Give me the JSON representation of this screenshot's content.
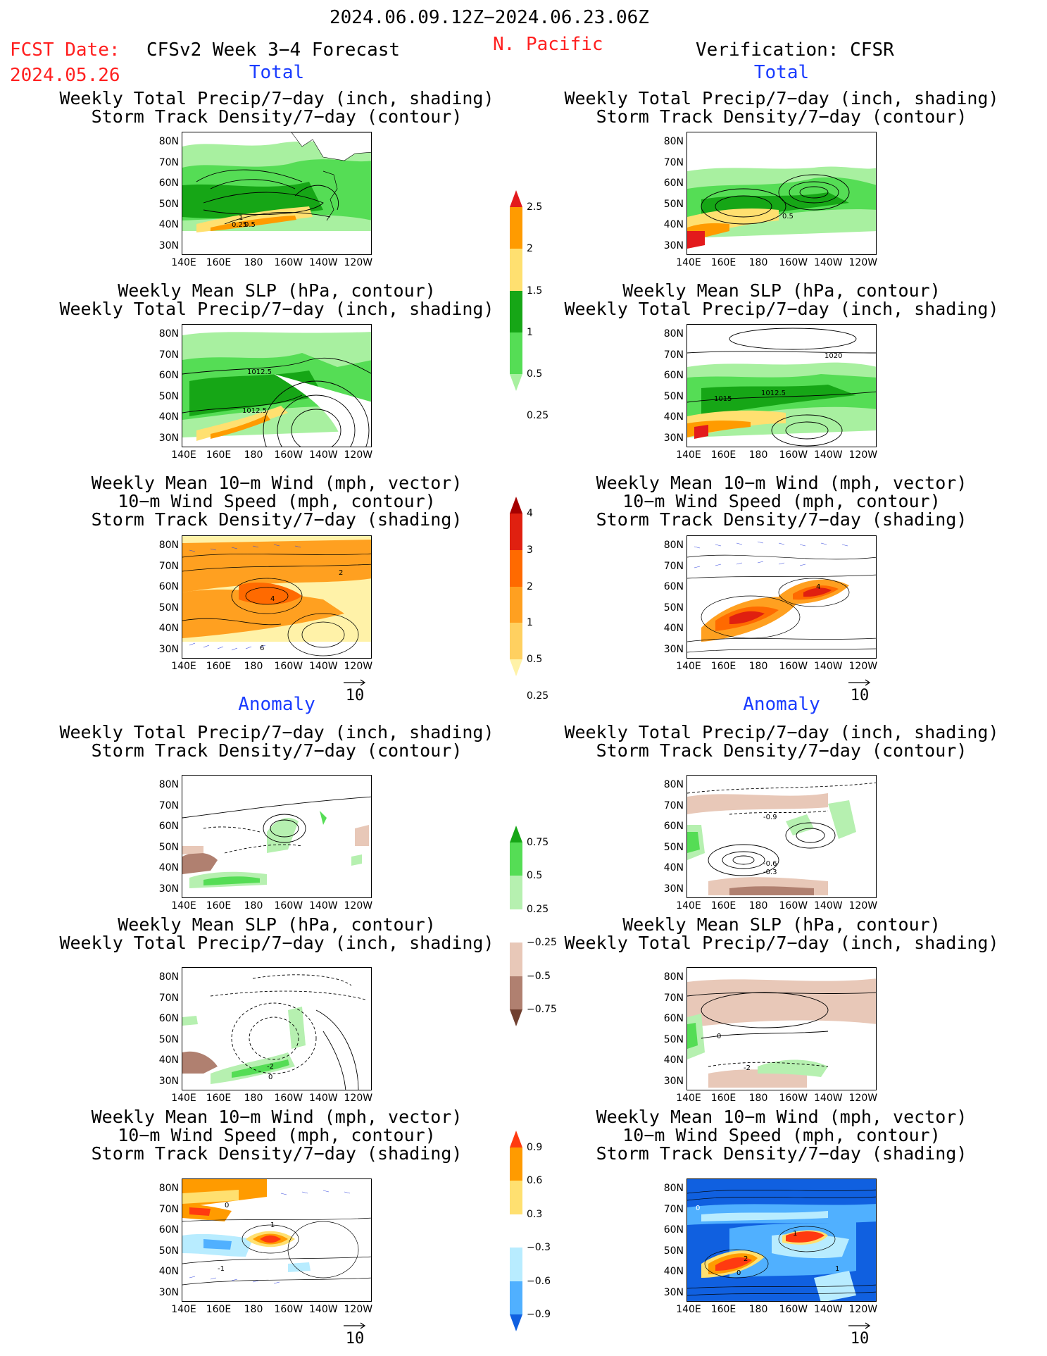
{
  "header": {
    "time_range": "2024.06.09.12Z−2024.06.23.06Z",
    "fcst_label": "FCST Date:",
    "fcst_date": "2024.05.26",
    "model": "CFSv2 Week 3−4 Forecast",
    "region": "N. Pacific",
    "verification": "Verification: CFSR"
  },
  "sections": {
    "total": "Total",
    "anomaly": "Anomaly"
  },
  "titles": {
    "precip_storm": "Weekly Total Precip/7−day (inch, shading)\nStorm Track Density/7−day (contour)",
    "slp_precip": "Weekly Mean SLP (hPa, contour)\nWeekly Total Precip/7−day (inch, shading)",
    "wind_storm": "Weekly Mean 10−m Wind (mph, vector)\n10−m Wind Speed (mph, contour)\nStorm Track Density/7−day (shading)"
  },
  "axes": {
    "lat": [
      "80N",
      "70N",
      "60N",
      "50N",
      "40N",
      "30N"
    ],
    "lon": [
      "140E",
      "160E",
      "180",
      "160W",
      "140W",
      "120W"
    ]
  },
  "vector_ref": "10",
  "contour_labels": {
    "fc_total_precip": [
      "1",
      "0.25",
      "0.5"
    ],
    "fc_total_slp": [
      "1012.5",
      "1012.5"
    ],
    "fc_total_wind": [
      "4",
      "2",
      "6"
    ],
    "vf_total_precip": [
      "0.5"
    ],
    "vf_total_slp": [
      "1020",
      "1015",
      "1012.5"
    ],
    "vf_total_wind": [
      "4"
    ],
    "fc_anom_slp": [
      "-2",
      "0"
    ],
    "vf_anom_precip": [
      "-0.9",
      "-0.6",
      "-0.3"
    ],
    "vf_anom_slp": [
      "0",
      "-2"
    ],
    "fc_anom_wind": [
      "0",
      "1",
      "-1"
    ],
    "vf_anom_wind": [
      "0",
      "1",
      "2",
      "0",
      "1"
    ]
  },
  "colorbars": {
    "total_precip": {
      "labels": [
        "2.5",
        "2",
        "1.5",
        "1",
        "0.5",
        "0.25"
      ],
      "colors": [
        "#e31a1c",
        "#ff9b00",
        "#ffe070",
        "#16a616",
        "#55dd55",
        "#a8f0a0"
      ]
    },
    "total_storm": {
      "labels": [
        "4",
        "3",
        "2",
        "1",
        "0.5",
        "0.25"
      ],
      "colors": [
        "#a50000",
        "#e02010",
        "#ff6a00",
        "#ffa020",
        "#ffd060",
        "#fff2a8"
      ]
    },
    "anom_precip": {
      "labels": [
        "0.75",
        "0.5",
        "0.25",
        "−0.25",
        "−0.5",
        "−0.75"
      ],
      "colors": [
        "#16a616",
        "#55dd55",
        "#b6f0b0",
        "#ffffff",
        "#e8c8b8",
        "#b08070",
        "#704030"
      ]
    },
    "anom_storm": {
      "labels": [
        "0.9",
        "0.6",
        "0.3",
        "−0.3",
        "−0.6",
        "−0.9"
      ],
      "colors": [
        "#ff3a10",
        "#ff9b00",
        "#ffe070",
        "#ffffff",
        "#b8ecff",
        "#50b0ff",
        "#1060e0"
      ]
    }
  },
  "colors": {
    "header_red": "#ff2020",
    "section_blue": "#1a3cff"
  }
}
